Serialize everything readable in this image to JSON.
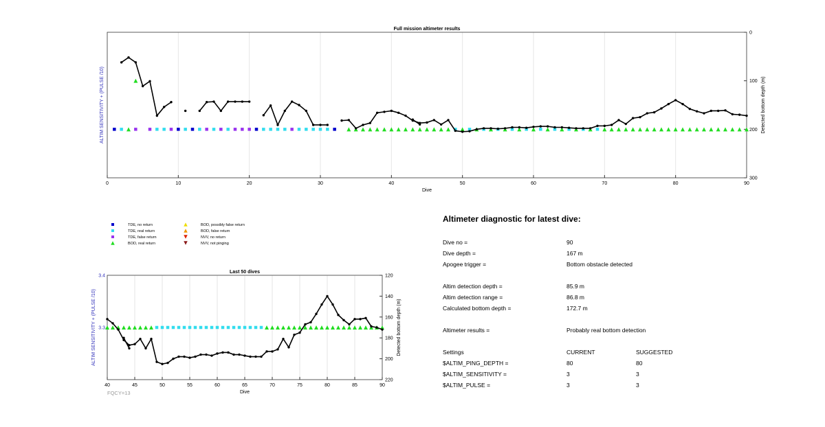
{
  "chart_data": [
    {
      "id": "top",
      "type": "line",
      "title": "Full mission altimeter results",
      "xlabel": "Dive",
      "ylabel_left": "ALTIM SENSITIVITY + (PULSE /10)",
      "ylabel_right": "Detected bottom depth (m)",
      "xlim": [
        0,
        90
      ],
      "ylim_right": [
        0,
        300
      ],
      "right_axis_inverted": true,
      "xticks": [
        0,
        10,
        20,
        30,
        40,
        50,
        60,
        70,
        80,
        90
      ],
      "yticks_right": [
        0,
        100,
        200,
        300
      ],
      "grid": "x",
      "bottom_depth_segments": [
        [
          [
            2,
            62
          ],
          [
            3,
            52
          ],
          [
            4,
            62
          ],
          [
            5,
            111
          ],
          [
            6,
            101
          ],
          [
            7,
            172
          ],
          [
            8,
            154
          ],
          [
            9,
            144
          ]
        ],
        [
          [
            11,
            162
          ]
        ],
        [
          [
            13,
            162
          ],
          [
            14,
            144
          ],
          [
            15,
            143
          ],
          [
            16,
            162
          ],
          [
            17,
            143
          ],
          [
            18,
            143
          ],
          [
            19,
            143
          ],
          [
            20,
            143
          ]
        ],
        [
          [
            22,
            171
          ],
          [
            23,
            151
          ],
          [
            24,
            191
          ],
          [
            25,
            162
          ],
          [
            26,
            143
          ],
          [
            27,
            150
          ],
          [
            28,
            162
          ],
          [
            29,
            191
          ],
          [
            30,
            191
          ],
          [
            31,
            191
          ]
        ],
        [
          [
            33,
            182
          ],
          [
            34,
            181
          ],
          [
            35,
            198
          ],
          [
            36,
            191
          ],
          [
            37,
            187
          ],
          [
            38,
            166
          ],
          [
            39,
            164
          ],
          [
            40,
            162
          ],
          [
            41,
            166
          ],
          [
            42,
            172
          ],
          [
            43,
            182
          ],
          [
            44,
            187
          ],
          [
            45,
            186
          ],
          [
            46,
            181
          ],
          [
            47,
            190
          ],
          [
            48,
            181
          ],
          [
            49,
            203
          ],
          [
            50,
            205
          ],
          [
            51,
            204
          ],
          [
            52,
            200
          ],
          [
            53,
            198
          ],
          [
            54,
            198
          ],
          [
            55,
            199
          ],
          [
            56,
            198
          ],
          [
            57,
            196
          ],
          [
            58,
            196
          ],
          [
            59,
            197
          ],
          [
            60,
            195
          ],
          [
            61,
            194
          ],
          [
            62,
            194
          ],
          [
            63,
            196
          ],
          [
            64,
            196
          ],
          [
            65,
            197
          ],
          [
            66,
            198
          ],
          [
            67,
            198
          ],
          [
            68,
            198
          ],
          [
            69,
            193
          ],
          [
            70,
            193
          ],
          [
            71,
            191
          ],
          [
            72,
            181
          ],
          [
            73,
            189
          ],
          [
            74,
            177
          ],
          [
            75,
            175
          ],
          [
            76,
            167
          ],
          [
            77,
            165
          ],
          [
            78,
            157
          ],
          [
            79,
            148
          ],
          [
            80,
            140
          ],
          [
            81,
            148
          ],
          [
            82,
            158
          ],
          [
            83,
            163
          ],
          [
            84,
            167
          ],
          [
            85,
            162
          ],
          [
            86,
            162
          ],
          [
            87,
            161
          ],
          [
            88,
            169
          ],
          [
            89,
            170
          ],
          [
            90,
            172
          ]
        ],
        [
          [
            43,
            180
          ],
          [
            44,
            190
          ]
        ]
      ],
      "markers": {
        "tde_no_return": [
          1,
          10,
          12,
          21,
          32
        ],
        "tde_real_return": [
          2,
          7,
          8,
          11,
          13,
          15,
          17,
          22,
          23,
          24,
          25,
          27,
          28,
          29,
          30,
          31,
          49,
          51,
          53,
          55,
          57,
          59,
          61,
          63,
          65,
          67,
          69
        ],
        "tde_false_return": [
          4,
          6,
          9,
          14,
          16,
          18,
          19,
          20,
          26
        ],
        "bod_real_return_level": [
          [
            3,
            200
          ],
          [
            4,
            100
          ],
          [
            34,
            200
          ],
          [
            35,
            200
          ],
          [
            36,
            200
          ],
          [
            37,
            200
          ],
          [
            38,
            200
          ],
          [
            39,
            200
          ],
          [
            40,
            200
          ],
          [
            41,
            200
          ],
          [
            42,
            200
          ],
          [
            43,
            200
          ],
          [
            44,
            200
          ],
          [
            45,
            200
          ],
          [
            46,
            200
          ],
          [
            47,
            200
          ],
          [
            48,
            200
          ],
          [
            50,
            200
          ],
          [
            52,
            200
          ],
          [
            54,
            200
          ],
          [
            56,
            200
          ],
          [
            58,
            200
          ],
          [
            60,
            200
          ],
          [
            62,
            200
          ],
          [
            64,
            200
          ],
          [
            66,
            200
          ],
          [
            68,
            200
          ],
          [
            70,
            200
          ],
          [
            71,
            200
          ],
          [
            72,
            200
          ],
          [
            73,
            200
          ],
          [
            74,
            200
          ],
          [
            75,
            200
          ],
          [
            76,
            200
          ],
          [
            77,
            200
          ],
          [
            78,
            200
          ],
          [
            79,
            200
          ],
          [
            80,
            200
          ],
          [
            81,
            200
          ],
          [
            82,
            200
          ],
          [
            83,
            200
          ],
          [
            84,
            200
          ],
          [
            85,
            200
          ],
          [
            86,
            200
          ],
          [
            87,
            200
          ],
          [
            88,
            200
          ],
          [
            89,
            200
          ],
          [
            90,
            200
          ]
        ]
      }
    },
    {
      "id": "bottom",
      "type": "line",
      "title": "Last 50 dives",
      "xlabel": "Dive",
      "ylabel_left": "ALTIM SENSITIVITY + (PULSE /10)",
      "ylabel_right": "Detected bottom depth (m)",
      "xlim": [
        40,
        90
      ],
      "ylim_left": [
        3.2,
        3.4
      ],
      "yticks_left": [
        "3.4",
        "3.3"
      ],
      "ylim_right": [
        120,
        220
      ],
      "right_axis_inverted": true,
      "xticks": [
        40,
        45,
        50,
        55,
        60,
        65,
        70,
        75,
        80,
        85,
        90
      ],
      "yticks_right": [
        120,
        140,
        160,
        180,
        200,
        220
      ],
      "grid": "x",
      "annotation": "FQCY=13",
      "bottom_depth_segments": [
        [
          [
            40,
            162
          ],
          [
            41,
            166
          ],
          [
            42,
            172
          ],
          [
            43,
            182
          ],
          [
            44,
            187
          ],
          [
            45,
            186
          ],
          [
            46,
            181
          ],
          [
            47,
            190
          ],
          [
            48,
            181
          ],
          [
            49,
            203
          ],
          [
            50,
            205
          ],
          [
            51,
            204
          ],
          [
            52,
            200
          ],
          [
            53,
            198
          ],
          [
            54,
            198
          ],
          [
            55,
            199
          ],
          [
            56,
            198
          ],
          [
            57,
            196
          ],
          [
            58,
            196
          ],
          [
            59,
            197
          ],
          [
            60,
            195
          ],
          [
            61,
            194
          ],
          [
            62,
            194
          ],
          [
            63,
            196
          ],
          [
            64,
            196
          ],
          [
            65,
            197
          ],
          [
            66,
            198
          ],
          [
            67,
            198
          ],
          [
            68,
            198
          ],
          [
            69,
            193
          ],
          [
            70,
            193
          ],
          [
            71,
            191
          ],
          [
            72,
            181
          ],
          [
            73,
            189
          ],
          [
            74,
            177
          ],
          [
            75,
            175
          ],
          [
            76,
            167
          ],
          [
            77,
            165
          ],
          [
            78,
            157
          ],
          [
            79,
            148
          ],
          [
            80,
            140
          ],
          [
            81,
            148
          ],
          [
            82,
            158
          ],
          [
            83,
            163
          ],
          [
            84,
            167
          ],
          [
            85,
            162
          ],
          [
            86,
            162
          ],
          [
            87,
            161
          ],
          [
            88,
            169
          ],
          [
            89,
            170
          ],
          [
            90,
            172
          ]
        ],
        [
          [
            43,
            180
          ],
          [
            44,
            190
          ]
        ]
      ],
      "markers": {
        "tde_real_return": [
          49,
          50,
          51,
          52,
          53,
          54,
          55,
          56,
          57,
          58,
          59,
          60,
          61,
          62,
          63,
          64,
          65,
          66,
          67,
          68
        ],
        "bod_real_return": [
          40,
          41,
          42,
          43,
          44,
          45,
          46,
          47,
          48,
          69,
          70,
          71,
          72,
          73,
          74,
          75,
          76,
          77,
          78,
          79,
          80,
          81,
          82,
          83,
          84,
          85,
          86,
          87,
          88,
          89,
          90
        ],
        "level": 3.3
      }
    }
  ],
  "legend": [
    {
      "label": "TDE, no return",
      "marker": "square",
      "color": "#0000cc"
    },
    {
      "label": "TDE, real return",
      "marker": "square",
      "color": "#33ddee"
    },
    {
      "label": "TDE, false return",
      "marker": "square",
      "color": "#9933ee"
    },
    {
      "label": "BOD, real return",
      "marker": "triangle-up",
      "color": "#22dd22"
    },
    {
      "label": "BOD, possibly false return",
      "marker": "triangle-up",
      "color": "#eedd00"
    },
    {
      "label": "BOD, false return",
      "marker": "triangle-up",
      "color": "#ee9900"
    },
    {
      "label": "NVV, no return",
      "marker": "triangle-down",
      "color": "#dd2200"
    },
    {
      "label": "NVV, not pinging",
      "marker": "triangle-down",
      "color": "#8b1a1a"
    }
  ],
  "diagnostic": {
    "title": "Altimeter diagnostic for latest dive:",
    "dive_no_label": "Dive no =",
    "dive_no": "90",
    "dive_depth_label": "Dive depth =",
    "dive_depth": "167 m",
    "apogee_label": "Apogee trigger =",
    "apogee": "Bottom obstacle detected",
    "det_depth_label": "Altim detection depth =",
    "det_depth": "85.9 m",
    "det_range_label": "Altim detection range =",
    "det_range": "86.8 m",
    "calc_bottom_label": "Calculated bottom depth =",
    "calc_bottom": "172.7 m",
    "results_label": "Altimeter results =",
    "results": "Probably real bottom detection",
    "settings_label": "Settings",
    "current_label": "CURRENT",
    "suggested_label": "SUGGESTED",
    "ping_depth_label": "$ALTIM_PING_DEPTH =",
    "ping_depth_current": "80",
    "ping_depth_suggested": "80",
    "sensitivity_label": "$ALTIM_SENSITIVITY =",
    "sensitivity_current": "3",
    "sensitivity_suggested": "3",
    "pulse_label": "$ALTIM_PULSE =",
    "pulse_current": "3",
    "pulse_suggested": "3"
  },
  "colors": {
    "axis_label_left": "#3333bb",
    "line": "#000000",
    "grid": "#e6e6e6",
    "annotation": "#999999"
  }
}
